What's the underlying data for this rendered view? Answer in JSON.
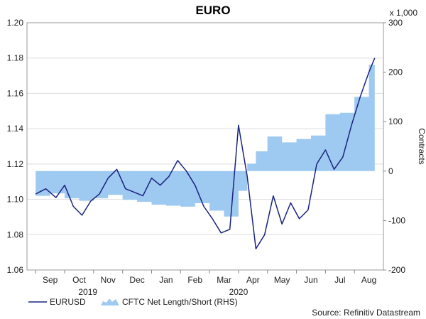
{
  "chart_data": {
    "type": "line",
    "title": "EURO",
    "left_axis": {
      "ylim": [
        1.06,
        1.2
      ],
      "ticks": [
        "1.06",
        "1.08",
        "1.10",
        "1.12",
        "1.14",
        "1.16",
        "1.18",
        "1.20"
      ]
    },
    "right_axis": {
      "ylim": [
        -200,
        300
      ],
      "ticks": [
        "-200",
        "-100",
        "0",
        "100",
        "200",
        "300"
      ],
      "multiplier_label": "x 1,000",
      "label": "Contracts"
    },
    "x_ticks": [
      "Sep",
      "Oct",
      "Nov",
      "Dec",
      "Jan",
      "Feb",
      "Mar",
      "Apr",
      "May",
      "Jun",
      "Jul",
      "Aug"
    ],
    "x_year_labels": [
      "2019",
      "2020"
    ],
    "legend": {
      "line_label": "EURUSD",
      "area_label": "CFTC Net Length/Short (RHS)"
    },
    "source": "Source: Refinitiv Datastream",
    "colors": {
      "line": "#1a237e",
      "area": "#9ec9f0",
      "grid": "#dddddd"
    },
    "series": [
      {
        "name": "EURUSD",
        "axis": "left",
        "x": [
          0,
          0.35,
          0.7,
          1.0,
          1.3,
          1.6,
          1.9,
          2.2,
          2.5,
          2.8,
          3.1,
          3.4,
          3.7,
          4.0,
          4.3,
          4.6,
          4.9,
          5.2,
          5.5,
          5.8,
          6.1,
          6.4,
          6.7,
          7.0,
          7.3,
          7.6,
          7.9,
          8.2,
          8.5,
          8.8,
          9.1,
          9.4,
          9.7,
          10.0,
          10.3,
          10.6,
          10.9,
          11.2,
          11.5,
          11.7
        ],
        "y": [
          1.103,
          1.106,
          1.101,
          1.108,
          1.096,
          1.091,
          1.099,
          1.103,
          1.112,
          1.117,
          1.106,
          1.104,
          1.102,
          1.112,
          1.108,
          1.113,
          1.122,
          1.116,
          1.108,
          1.096,
          1.089,
          1.081,
          1.083,
          1.142,
          1.113,
          1.072,
          1.08,
          1.102,
          1.086,
          1.098,
          1.089,
          1.094,
          1.12,
          1.128,
          1.117,
          1.124,
          1.142,
          1.158,
          1.172,
          1.18
        ]
      },
      {
        "name": "CFTC Net Length/Short (RHS)",
        "axis": "right",
        "x": [
          0,
          0.5,
          1.0,
          1.5,
          2.0,
          2.5,
          3.0,
          3.5,
          4.0,
          4.5,
          5.0,
          5.5,
          6.0,
          6.5,
          7.0,
          7.3,
          7.6,
          8.0,
          8.5,
          9.0,
          9.5,
          10.0,
          10.5,
          11.0,
          11.5,
          11.7
        ],
        "y": [
          -50,
          -45,
          -55,
          -60,
          -55,
          -48,
          -58,
          -62,
          -68,
          -70,
          -72,
          -65,
          -80,
          -92,
          -40,
          15,
          40,
          70,
          58,
          65,
          72,
          115,
          118,
          150,
          215,
          210
        ]
      }
    ]
  }
}
